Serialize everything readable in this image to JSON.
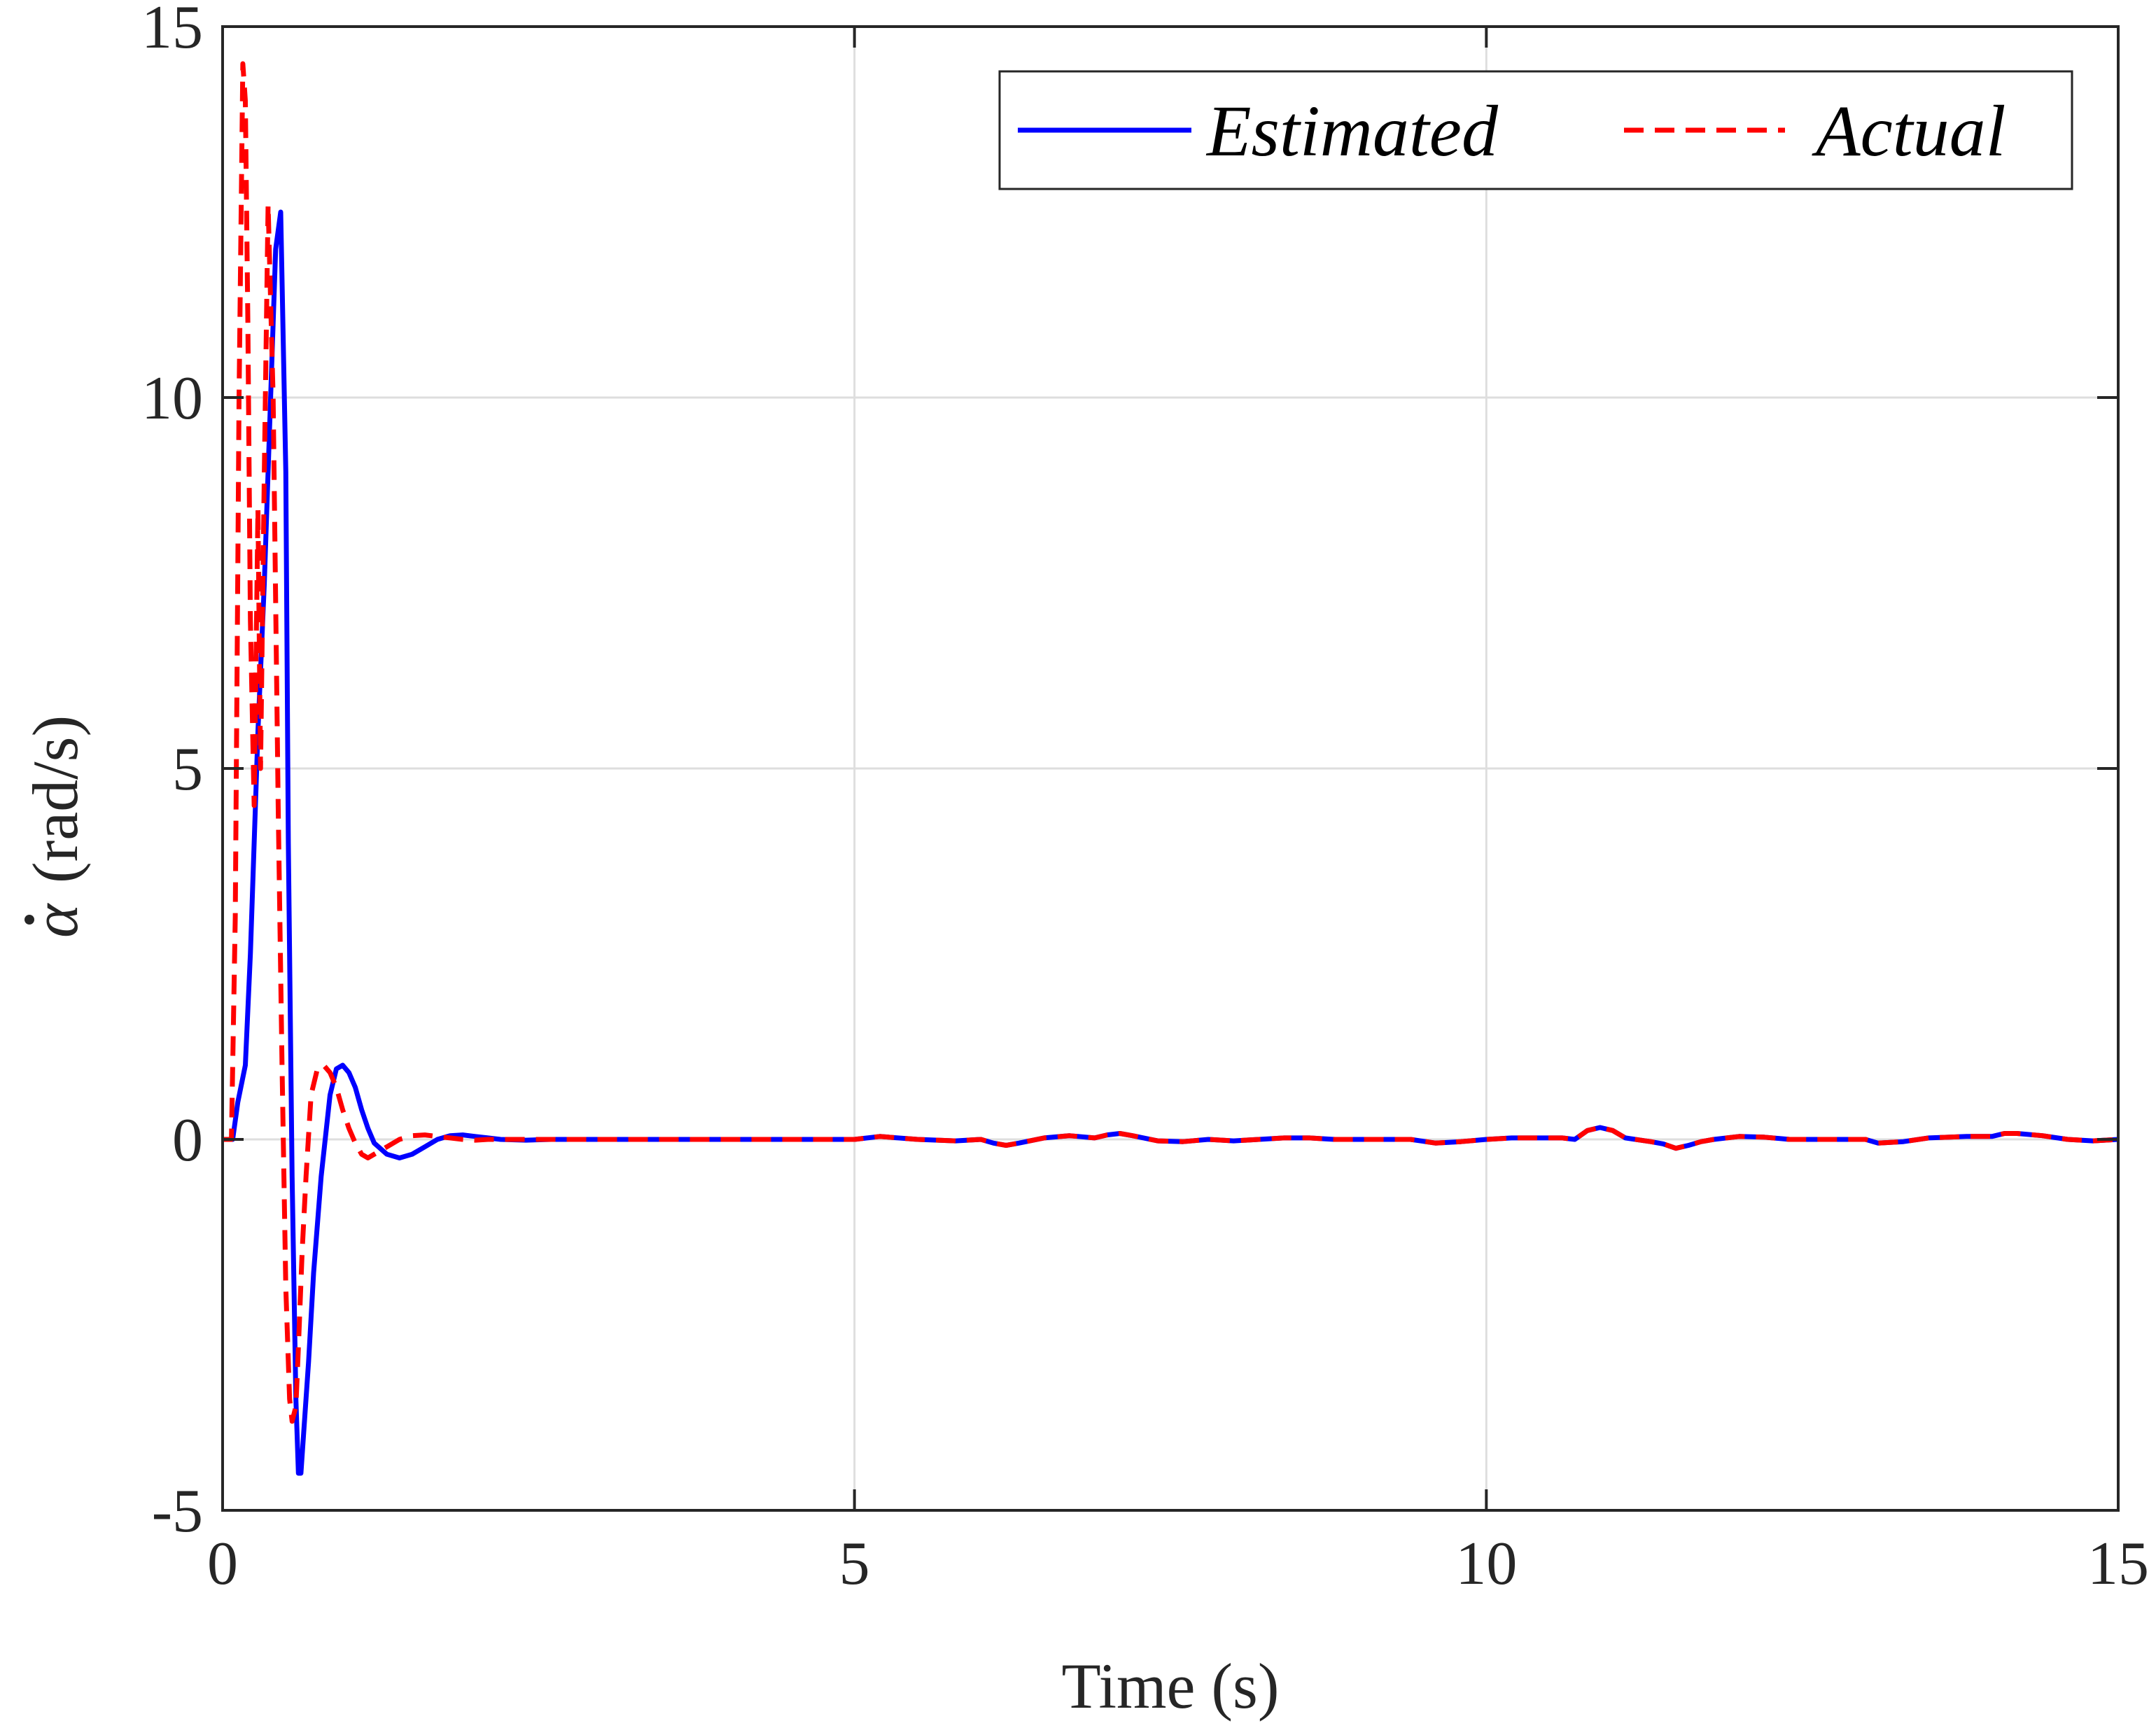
{
  "chart_data": {
    "type": "line",
    "xlabel": "Time (s)",
    "ylabel_symbol": "α",
    "ylabel_unit": "(rad/s)",
    "xlim": [
      0,
      15
    ],
    "ylim": [
      -5,
      15
    ],
    "xticks": [
      0,
      5,
      10,
      15
    ],
    "yticks": [
      -5,
      0,
      5,
      10,
      15
    ],
    "xtick_labels": [
      "0",
      "5",
      "10",
      "15"
    ],
    "ytick_labels": [
      "-5",
      "0",
      "5",
      "10",
      "15"
    ],
    "grid": true,
    "legend": {
      "location": "top-right",
      "orientation": "horizontal"
    },
    "series": [
      {
        "name": "Estimated",
        "color": "#0000ff",
        "dash": "solid",
        "x": [
          0,
          0.08,
          0.12,
          0.18,
          0.22,
          0.28,
          0.33,
          0.38,
          0.42,
          0.46,
          0.5,
          0.52,
          0.55,
          0.58,
          0.6,
          0.62,
          0.64,
          0.68,
          0.72,
          0.78,
          0.85,
          0.9,
          0.95,
          1.0,
          1.05,
          1.1,
          1.15,
          1.2,
          1.3,
          1.4,
          1.5,
          1.6,
          1.7,
          1.8,
          1.9,
          2.0,
          2.1,
          2.2,
          2.4,
          2.6,
          2.8,
          3.0,
          3.5,
          4.0,
          4.5,
          5.0,
          5.2,
          5.5,
          5.8,
          6.0,
          6.1,
          6.2,
          6.3,
          6.5,
          6.7,
          6.9,
          7.0,
          7.1,
          7.2,
          7.4,
          7.6,
          7.8,
          8.0,
          8.2,
          8.4,
          8.6,
          8.8,
          9.0,
          9.2,
          9.4,
          9.6,
          9.8,
          10.0,
          10.2,
          10.4,
          10.6,
          10.7,
          10.8,
          10.9,
          11.0,
          11.1,
          11.3,
          11.4,
          11.5,
          11.6,
          11.7,
          11.8,
          12.0,
          12.2,
          12.4,
          12.6,
          12.8,
          13.0,
          13.1,
          13.3,
          13.5,
          13.8,
          14.0,
          14.1,
          14.2,
          14.4,
          14.6,
          14.8,
          15.0
        ],
        "y": [
          0,
          0,
          0.5,
          1.0,
          2.5,
          5.5,
          7.5,
          10.0,
          12.0,
          12.5,
          9.0,
          4.0,
          -0.5,
          -3.5,
          -4.5,
          -4.5,
          -4.0,
          -3.0,
          -1.8,
          -0.5,
          0.6,
          0.95,
          1.0,
          0.9,
          0.7,
          0.4,
          0.15,
          -0.05,
          -0.2,
          -0.25,
          -0.2,
          -0.1,
          0,
          0.05,
          0.06,
          0.04,
          0.02,
          0,
          -0.01,
          0,
          0,
          0,
          0,
          0,
          0,
          0,
          0.04,
          0,
          -0.02,
          0,
          -0.05,
          -0.08,
          -0.05,
          0.02,
          0.05,
          0.02,
          0.06,
          0.08,
          0.05,
          -0.02,
          -0.03,
          0,
          -0.02,
          0,
          0.02,
          0.02,
          0,
          0,
          0,
          0,
          -0.05,
          -0.03,
          0,
          0.02,
          0.02,
          0.02,
          0,
          0.12,
          0.16,
          0.12,
          0.02,
          -0.03,
          -0.06,
          -0.12,
          -0.08,
          -0.03,
          0,
          0.04,
          0.03,
          0,
          0,
          0,
          0,
          -0.05,
          -0.03,
          0.02,
          0.04,
          0.04,
          0.08,
          0.08,
          0.05,
          0,
          -0.02,
          0
        ]
      },
      {
        "name": "Actual",
        "color": "#ff0000",
        "dash": "dashed",
        "x": [
          0,
          0.07,
          0.1,
          0.13,
          0.16,
          0.18,
          0.2,
          0.22,
          0.25,
          0.28,
          0.3,
          0.33,
          0.36,
          0.4,
          0.44,
          0.47,
          0.5,
          0.53,
          0.55,
          0.58,
          0.6,
          0.63,
          0.66,
          0.7,
          0.75,
          0.8,
          0.85,
          0.9,
          0.95,
          1.0,
          1.05,
          1.1,
          1.15,
          1.2,
          1.3,
          1.4,
          1.5,
          1.6,
          1.7,
          1.8,
          1.9,
          2.0,
          2.1,
          2.2,
          2.4,
          2.6,
          2.8,
          3.0,
          3.5,
          4.0,
          4.5,
          5.0,
          5.2,
          5.5,
          5.8,
          6.0,
          6.1,
          6.2,
          6.3,
          6.5,
          6.7,
          6.9,
          7.0,
          7.1,
          7.2,
          7.4,
          7.6,
          7.8,
          8.0,
          8.2,
          8.4,
          8.6,
          8.8,
          9.0,
          9.2,
          9.4,
          9.6,
          9.8,
          10.0,
          10.2,
          10.4,
          10.6,
          10.7,
          10.8,
          10.9,
          11.0,
          11.1,
          11.3,
          11.4,
          11.5,
          11.6,
          11.7,
          11.8,
          12.0,
          12.2,
          12.4,
          12.6,
          12.8,
          13.0,
          13.1,
          13.3,
          13.5,
          13.8,
          14.0,
          14.1,
          14.2,
          14.4,
          14.6,
          14.8,
          15.0
        ],
        "y": [
          0,
          0,
          3.0,
          10.0,
          14.5,
          14.0,
          11.0,
          7.0,
          4.5,
          8.5,
          5.0,
          9.0,
          12.6,
          10.0,
          4.5,
          1.0,
          -2.0,
          -3.5,
          -3.8,
          -3.6,
          -2.8,
          -1.5,
          -0.5,
          0.6,
          0.95,
          1.0,
          0.9,
          0.7,
          0.4,
          0.15,
          -0.05,
          -0.2,
          -0.25,
          -0.2,
          -0.1,
          0,
          0.05,
          0.06,
          0.04,
          0.02,
          0,
          -0.01,
          0,
          0,
          0,
          0,
          0,
          0,
          0,
          0,
          0,
          0,
          0.04,
          0,
          -0.02,
          0,
          -0.05,
          -0.08,
          -0.05,
          0.02,
          0.05,
          0.02,
          0.06,
          0.08,
          0.05,
          -0.02,
          -0.03,
          0,
          -0.02,
          0,
          0.02,
          0.02,
          0,
          0,
          0,
          0,
          -0.05,
          -0.03,
          0,
          0.02,
          0.02,
          0.02,
          0,
          0.12,
          0.16,
          0.12,
          0.02,
          -0.03,
          -0.06,
          -0.12,
          -0.08,
          -0.03,
          0,
          0.04,
          0.03,
          0,
          0,
          0,
          0,
          -0.05,
          -0.03,
          0.02,
          0.04,
          0.04,
          0.08,
          0.08,
          0.05,
          0,
          -0.02,
          0
        ]
      }
    ]
  }
}
